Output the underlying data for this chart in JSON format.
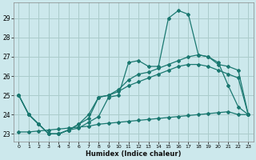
{
  "xlabel": "Humidex (Indice chaleur)",
  "bg_color": "#cce8ec",
  "grid_color": "#aacccc",
  "line_color": "#1a7870",
  "y_ticks": [
    23,
    24,
    25,
    26,
    27,
    28,
    29
  ],
  "xlim": [
    -0.5,
    23.5
  ],
  "ylim": [
    22.6,
    29.8
  ],
  "series1": [
    25.0,
    24.0,
    23.5,
    23.0,
    23.0,
    23.2,
    23.3,
    23.6,
    23.9,
    24.9,
    25.0,
    26.7,
    26.8,
    26.5,
    26.5,
    29.0,
    29.4,
    29.2,
    27.1,
    27.0,
    26.7,
    25.5,
    24.4,
    24.0
  ],
  "series2": [
    25.0,
    24.0,
    23.5,
    23.0,
    23.0,
    23.2,
    23.5,
    23.8,
    24.9,
    25.0,
    25.3,
    25.8,
    26.1,
    26.2,
    26.4,
    26.6,
    26.8,
    27.0,
    27.1,
    27.0,
    26.6,
    26.5,
    26.3,
    24.0
  ],
  "series3": [
    25.0,
    24.0,
    23.5,
    23.0,
    23.0,
    23.2,
    23.5,
    24.0,
    24.9,
    25.0,
    25.2,
    25.5,
    25.7,
    25.9,
    26.1,
    26.3,
    26.5,
    26.6,
    26.6,
    26.5,
    26.3,
    26.1,
    25.9,
    24.0
  ],
  "series4": [
    23.1,
    23.1,
    23.15,
    23.2,
    23.25,
    23.3,
    23.35,
    23.4,
    23.5,
    23.55,
    23.6,
    23.65,
    23.7,
    23.75,
    23.8,
    23.85,
    23.9,
    23.95,
    24.0,
    24.05,
    24.1,
    24.15,
    24.0,
    24.0
  ],
  "x_tick_labels": [
    "0",
    "1",
    "2",
    "3",
    "4",
    "5",
    "6",
    "7",
    "8",
    "9",
    "10",
    "11",
    "12",
    "13",
    "14",
    "15",
    "16",
    "17",
    "18",
    "19",
    "20",
    "21",
    "22",
    "23"
  ]
}
